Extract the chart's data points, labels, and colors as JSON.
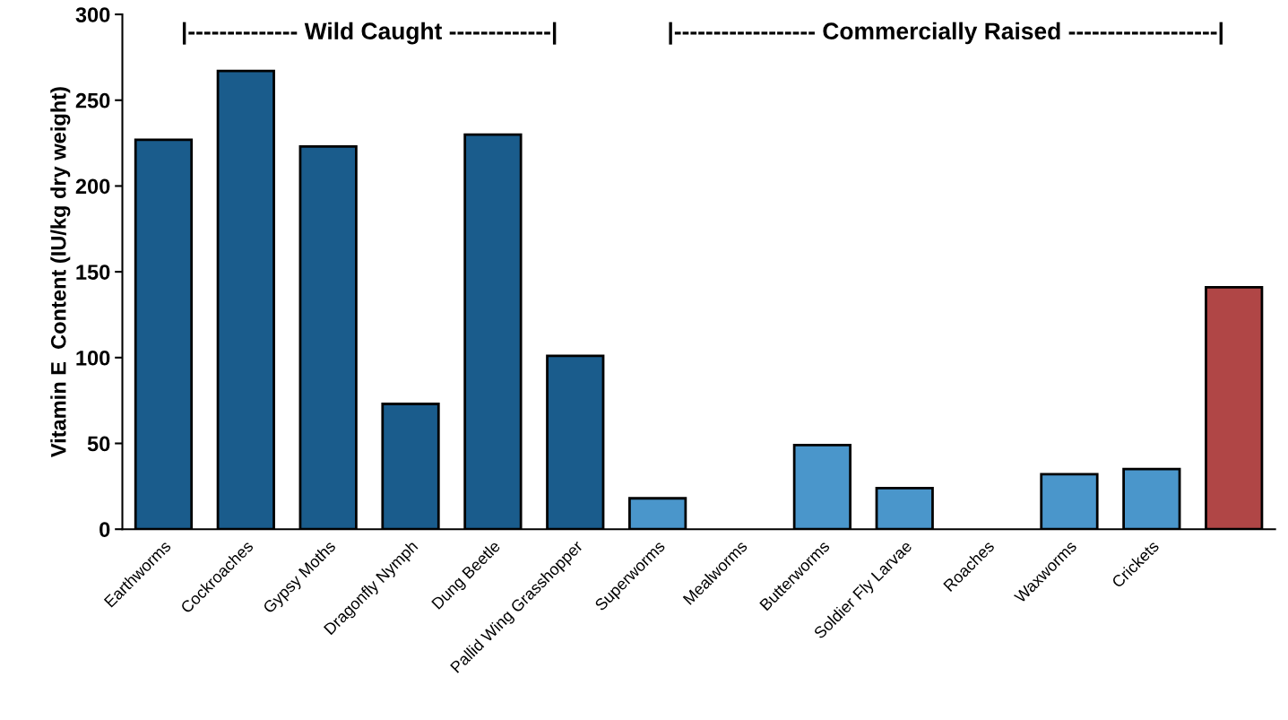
{
  "chart_data": {
    "type": "bar",
    "ylabel": "Vitamin E  Content (IU/kg dry weight)",
    "categories": [
      "Earthworms",
      "Cockroaches",
      "Gypsy Moths",
      "Dragonfly Nymph",
      "Dung Beetle",
      "Pallid Wing Grasshopper",
      "Superworms",
      "Mealworms",
      "Butterworms",
      "Soldier Fly Larvae",
      "Roaches",
      "Waxworms",
      "Crickets",
      null
    ],
    "values": [
      227,
      267,
      223,
      73,
      230,
      101,
      18,
      0,
      49,
      24,
      0,
      32,
      35,
      141
    ],
    "colors": [
      "#1a5c8c",
      "#1a5c8c",
      "#1a5c8c",
      "#1a5c8c",
      "#1a5c8c",
      "#1a5c8c",
      "#4a96cb",
      "#4a96cb",
      "#4a96cb",
      "#4a96cb",
      "#4a96cb",
      "#4a96cb",
      "#4a96cb",
      "#b04646"
    ],
    "ylim": [
      0,
      300
    ],
    "yticks": [
      0,
      50,
      100,
      150,
      200,
      250,
      300
    ],
    "annotations": [
      "|-------------- Wild Caught -------------|",
      "|------------------ Commercially Raised -------------------|"
    ],
    "grid": false,
    "legend": false
  }
}
